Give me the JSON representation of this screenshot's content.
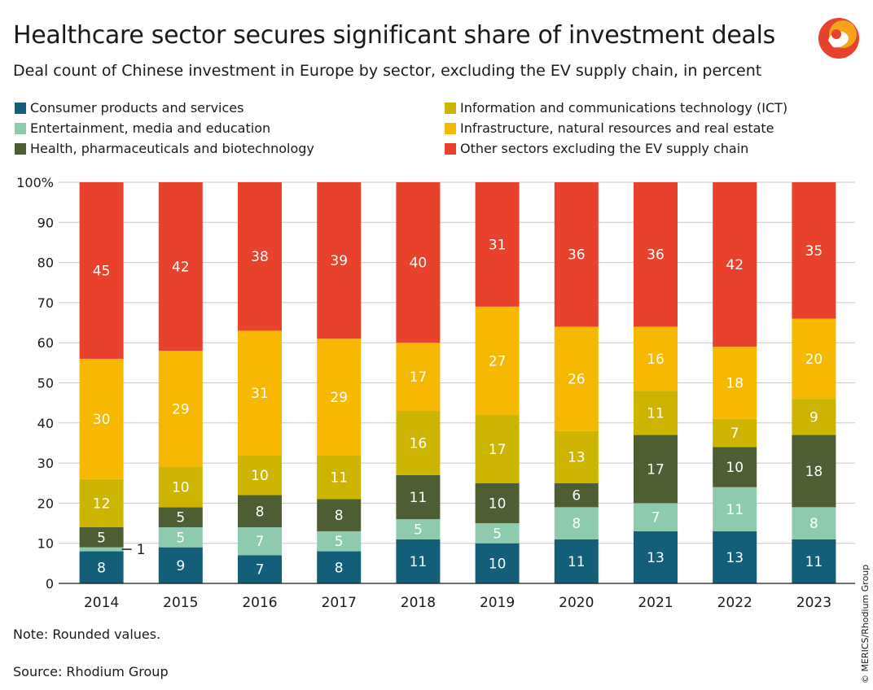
{
  "header": {
    "title": "Healthcare sector secures significant share of investment deals",
    "subtitle": "Deal count of Chinese investment in Europe by sector, excluding the EV supply chain, in percent"
  },
  "legend": [
    {
      "label": "Consumer products and services",
      "color": "#135e78"
    },
    {
      "label": "Entertainment, media and education",
      "color": "#8ecbae"
    },
    {
      "label": "Health, pharmaceuticals and biotechnology",
      "color": "#4e5e33"
    },
    {
      "label": "Information and communications technology (ICT)",
      "color": "#cdb400"
    },
    {
      "label": "Infrastructure, natural resources and real estate",
      "color": "#f6b800"
    },
    {
      "label": "Other sectors excluding the EV supply chain",
      "color": "#e8412c"
    }
  ],
  "chart_data": {
    "type": "bar",
    "stacked": true,
    "categories": [
      "2014",
      "2015",
      "2016",
      "2017",
      "2018",
      "2019",
      "2020",
      "2021",
      "2022",
      "2023"
    ],
    "ylim": [
      0,
      100
    ],
    "yticks": [
      "0",
      "10",
      "20",
      "30",
      "40",
      "50",
      "60",
      "70",
      "80",
      "90",
      "100%"
    ],
    "grid": true,
    "legend_position": "top",
    "series": [
      {
        "name": "Consumer products and services",
        "color": "#135e78",
        "values": [
          8,
          9,
          7,
          8,
          11,
          10,
          11,
          13,
          13,
          11
        ]
      },
      {
        "name": "Entertainment, media and education",
        "color": "#8ecbae",
        "values": [
          1,
          5,
          7,
          5,
          5,
          5,
          8,
          7,
          11,
          8
        ]
      },
      {
        "name": "Health, pharmaceuticals and biotechnology",
        "color": "#4e5e33",
        "values": [
          5,
          5,
          8,
          8,
          11,
          10,
          6,
          17,
          10,
          18
        ]
      },
      {
        "name": "Information and communications technology (ICT)",
        "color": "#cdb400",
        "values": [
          12,
          10,
          10,
          11,
          16,
          17,
          13,
          11,
          7,
          9
        ]
      },
      {
        "name": "Infrastructure, natural resources and real estate",
        "color": "#f6b800",
        "values": [
          30,
          29,
          31,
          29,
          17,
          27,
          26,
          16,
          18,
          20
        ]
      },
      {
        "name": "Other sectors excluding the EV supply chain",
        "color": "#e8412c",
        "values": [
          45,
          42,
          38,
          39,
          40,
          31,
          36,
          36,
          42,
          35
        ]
      }
    ]
  },
  "footer": {
    "note": "Note: Rounded values.",
    "source": "Source: Rhodium Group",
    "credit": "© MERICS/Rhodium Group"
  }
}
